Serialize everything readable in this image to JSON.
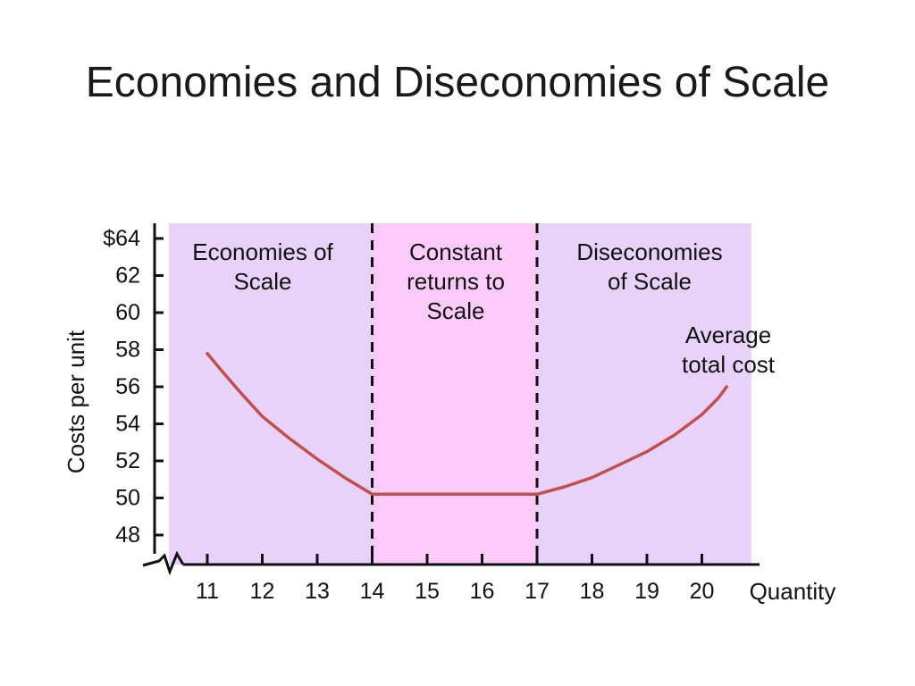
{
  "title": "Economies and Diseconomies of Scale",
  "chart_data": {
    "type": "line",
    "xlabel": "Quantity",
    "ylabel": "Costs per unit",
    "x_ticks": [
      "11",
      "12",
      "13",
      "14",
      "15",
      "16",
      "17",
      "18",
      "19",
      "20"
    ],
    "y_ticks": [
      "48",
      "50",
      "52",
      "54",
      "56",
      "58",
      "60",
      "62",
      "$64"
    ],
    "xlim": [
      10.3,
      20.9
    ],
    "ylim": [
      48,
      64.5
    ],
    "y_axis_break": true,
    "regions": [
      {
        "label": "Economies of Scale",
        "from": 10.3,
        "to": 14,
        "color": "#e8d2fa"
      },
      {
        "label": "Constant returns to Scale",
        "from": 14,
        "to": 17,
        "color": "#fccbf9"
      },
      {
        "label": "Diseconomies of Scale",
        "from": 17,
        "to": 20.9,
        "color": "#e8d2fa"
      }
    ],
    "dividers": [
      14,
      17
    ],
    "series": [
      {
        "name": "Average total cost",
        "color": "#c0504d",
        "points": [
          [
            11,
            57.8
          ],
          [
            11.25,
            56.9
          ],
          [
            11.6,
            55.7
          ],
          [
            12,
            54.4
          ],
          [
            12.5,
            53.2
          ],
          [
            13,
            52.1
          ],
          [
            13.5,
            51.1
          ],
          [
            14,
            50.2
          ],
          [
            14.5,
            50.2
          ],
          [
            15,
            50.2
          ],
          [
            16,
            50.2
          ],
          [
            16.5,
            50.2
          ],
          [
            17,
            50.2
          ],
          [
            17.5,
            50.6
          ],
          [
            18,
            51.1
          ],
          [
            18.5,
            51.8
          ],
          [
            19,
            52.5
          ],
          [
            19.5,
            53.4
          ],
          [
            20,
            54.5
          ],
          [
            20.3,
            55.4
          ],
          [
            20.45,
            56.0
          ]
        ]
      }
    ]
  }
}
